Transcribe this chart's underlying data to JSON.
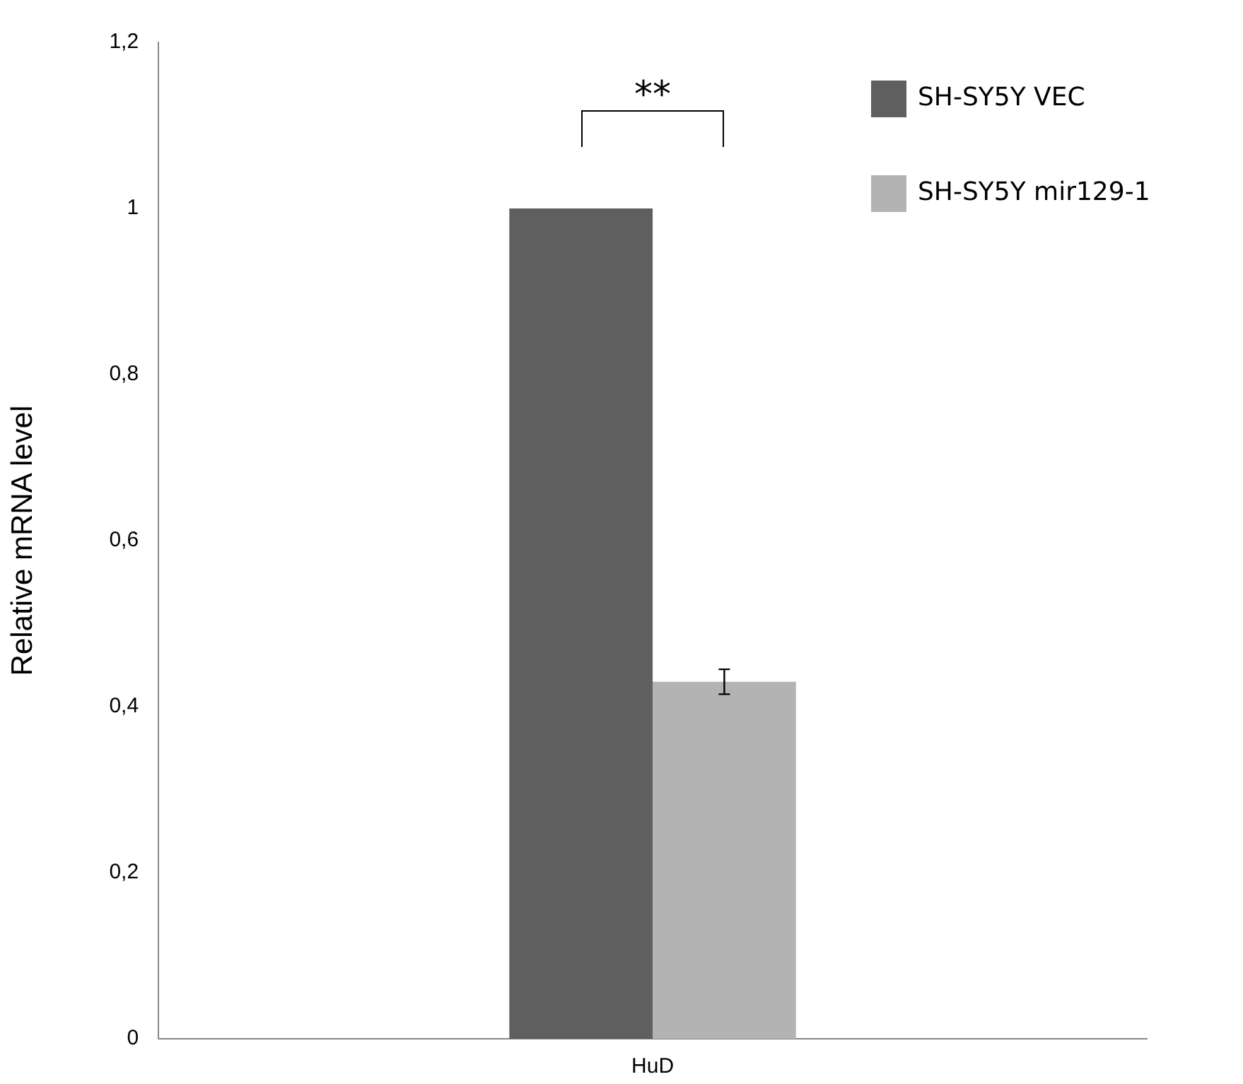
{
  "chart_data": {
    "type": "bar",
    "ylabel": "Relative mRNA level",
    "categories": [
      "HuD"
    ],
    "series": [
      {
        "name": "SH-SY5Y VEC",
        "color": "#5f5f5f",
        "values": [
          1
        ],
        "errors": [
          null
        ]
      },
      {
        "name": "SH-SY5Y mir129-1",
        "color": "#b3b3b3",
        "values": [
          0.43
        ],
        "errors": [
          0.015
        ]
      }
    ],
    "ylim": [
      0,
      1.2
    ],
    "yticks": [
      0,
      {
        "value": 0.2,
        "label": "0,2"
      },
      {
        "value": 0.4,
        "label": "0,4"
      },
      {
        "value": 0.6,
        "label": "0,6"
      },
      {
        "value": 0.8,
        "label": "0,8"
      },
      1,
      {
        "value": 1.2,
        "label": "1,2"
      }
    ],
    "grid": false,
    "legend": "top right",
    "annotations": [
      "**"
    ]
  }
}
